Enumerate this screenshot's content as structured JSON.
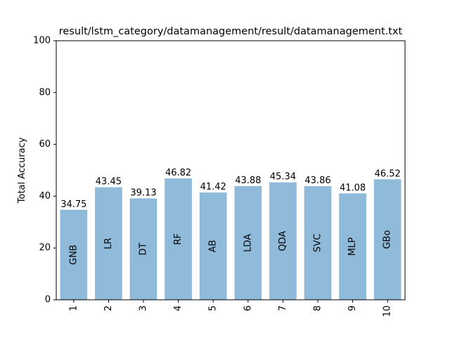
{
  "chart_data": {
    "type": "bar",
    "title": "result/lstm_category/datamanagement/result/datamanagement.txt",
    "xlabel": "",
    "ylabel": "Total Accuracy",
    "ylim": [
      0,
      100
    ],
    "yticks": [
      "0",
      "20",
      "40",
      "60",
      "80",
      "100"
    ],
    "categories": [
      "1",
      "2",
      "3",
      "4",
      "5",
      "6",
      "7",
      "8",
      "9",
      "10"
    ],
    "bar_labels": [
      "GNB",
      "LR",
      "DT",
      "RF",
      "AB",
      "LDA",
      "QDA",
      "SVC",
      "MLP",
      "GBo"
    ],
    "values": [
      34.75,
      43.45,
      39.13,
      46.82,
      41.42,
      43.88,
      45.34,
      43.86,
      41.08,
      46.52
    ],
    "value_labels": [
      "34.75",
      "43.45",
      "39.13",
      "46.82",
      "41.42",
      "43.88",
      "45.34",
      "43.86",
      "41.08",
      "46.52"
    ],
    "bar_color": "#8fbad9",
    "grid": false,
    "legend": "none"
  }
}
